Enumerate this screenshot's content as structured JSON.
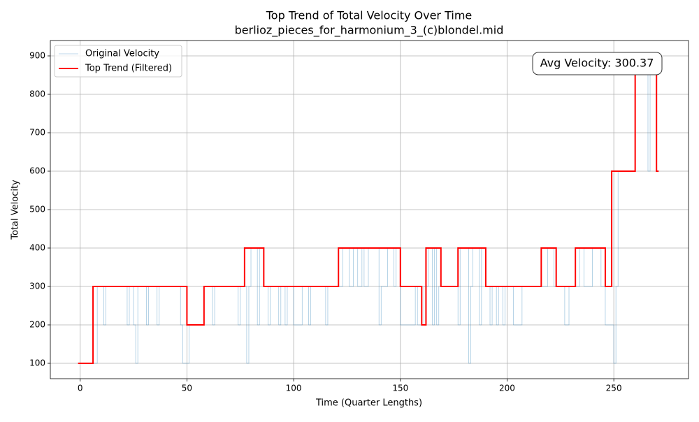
{
  "chart_data": {
    "type": "line",
    "title": "Top Trend of Total Velocity Over Time",
    "subtitle": "berlioz_pieces_for_harmonium_3_(c)blondel.mid",
    "x_label": "Time (Quarter Lengths)",
    "y_label": "Total Velocity",
    "annotation": "Avg Velocity: 300.37",
    "drawstyle": "steps-post",
    "grid": true,
    "legend": "upper left",
    "xlim": [
      -14,
      285
    ],
    "xticks": [
      0,
      50,
      100,
      150,
      200,
      250
    ],
    "ylim": [
      60,
      940
    ],
    "yticks": [
      100,
      200,
      300,
      400,
      500,
      600,
      700,
      800,
      900
    ],
    "series": [
      {
        "name": "Original Velocity",
        "color": "#1f77b4",
        "opacity": 0.4,
        "width": 0.8,
        "x": [
          -1,
          8,
          11,
          12,
          22,
          23,
          25,
          26,
          27,
          31,
          32,
          36,
          37,
          47,
          48,
          51,
          52,
          58,
          62,
          63,
          74,
          75,
          78,
          79,
          80,
          83,
          84,
          86,
          88,
          89,
          93,
          94,
          96,
          97,
          100,
          104,
          107,
          108,
          115,
          116,
          123,
          126,
          128,
          130,
          132,
          133,
          135,
          140,
          141,
          144,
          147,
          148,
          150,
          157,
          158,
          161,
          163,
          165,
          166,
          167,
          168,
          177,
          178,
          182,
          183,
          184,
          187,
          188,
          190,
          192,
          193,
          195,
          196,
          198,
          199,
          203,
          207,
          219,
          222,
          227,
          229,
          234,
          236,
          240,
          244,
          246,
          250,
          251,
          252,
          260,
          266,
          267,
          270,
          271
        ],
        "values": [
          100,
          300,
          200,
          300,
          200,
          300,
          200,
          100,
          300,
          200,
          300,
          200,
          300,
          200,
          100,
          200,
          200,
          300,
          200,
          300,
          200,
          300,
          100,
          300,
          400,
          200,
          400,
          300,
          200,
          300,
          200,
          300,
          200,
          300,
          200,
          300,
          200,
          300,
          200,
          300,
          400,
          300,
          400,
          300,
          400,
          300,
          400,
          200,
          300,
          400,
          300,
          400,
          200,
          300,
          200,
          300,
          400,
          200,
          400,
          200,
          300,
          200,
          400,
          100,
          300,
          400,
          200,
          400,
          300,
          200,
          300,
          200,
          300,
          200,
          300,
          200,
          300,
          400,
          300,
          200,
          300,
          400,
          300,
          400,
          300,
          200,
          100,
          300,
          600,
          900,
          600,
          900,
          600,
          600
        ]
      },
      {
        "name": "Top Trend (Filtered)",
        "color": "#ff0000",
        "opacity": 1,
        "width": 2,
        "x": [
          -1,
          6,
          50,
          58,
          77,
          86,
          121,
          150,
          160,
          162,
          169,
          177,
          190,
          216,
          223,
          232,
          246,
          249,
          260,
          270,
          271
        ],
        "values": [
          100,
          300,
          200,
          300,
          400,
          300,
          400,
          300,
          200,
          400,
          300,
          400,
          300,
          400,
          300,
          400,
          300,
          600,
          900,
          600,
          600
        ]
      }
    ]
  }
}
